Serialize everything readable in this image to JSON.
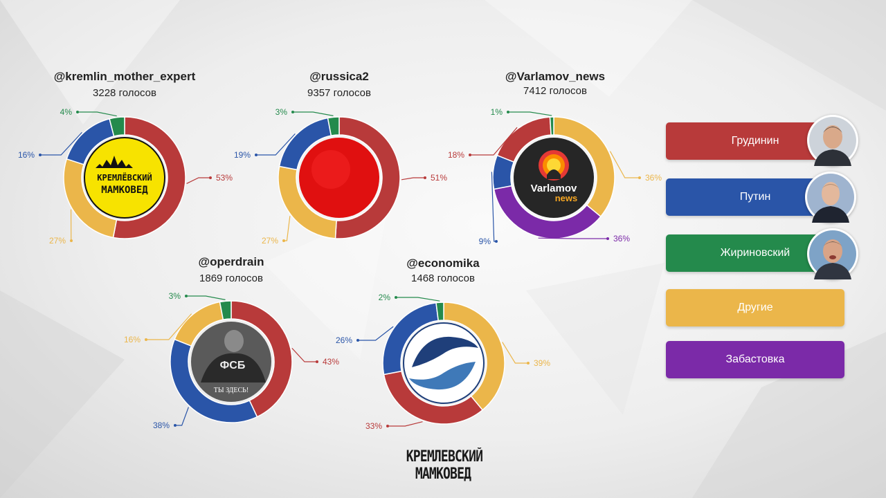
{
  "colors": {
    "grudinin": "#b83a3a",
    "putin": "#2a55a8",
    "zhirinovsky": "#248a4c",
    "others": "#ebb64a",
    "strike": "#7b2aa8"
  },
  "legend": [
    {
      "label": "Грудинин",
      "key": "grudinin",
      "photo": "grudinin-photo"
    },
    {
      "label": "Путин",
      "key": "putin",
      "photo": "putin-photo"
    },
    {
      "label": "Жириновский",
      "key": "zhirinovsky",
      "photo": "zhirinovsky-photo"
    },
    {
      "label": "Другие",
      "key": "others"
    },
    {
      "label": "Забастовка",
      "key": "strike"
    }
  ],
  "chart_data": [
    {
      "type": "pie",
      "title": "@kremlin_mother_expert",
      "subtitle": "3228 голосов",
      "logo_text": [
        "КРЕМЛЁВСКИЙ",
        "МАМКОВЕД"
      ],
      "slices": [
        {
          "key": "grudinin",
          "value": 53,
          "label": "53%"
        },
        {
          "key": "others",
          "value": 27,
          "label": "27%"
        },
        {
          "key": "putin",
          "value": 16,
          "label": "16%"
        },
        {
          "key": "zhirinovsky",
          "value": 4,
          "label": "4%"
        }
      ]
    },
    {
      "type": "pie",
      "title": "@russica2",
      "subtitle": "9357 голосов",
      "slices": [
        {
          "key": "grudinin",
          "value": 51,
          "label": "51%"
        },
        {
          "key": "others",
          "value": 27,
          "label": "27%"
        },
        {
          "key": "putin",
          "value": 19,
          "label": "19%"
        },
        {
          "key": "zhirinovsky",
          "value": 3,
          "label": "3%"
        }
      ]
    },
    {
      "type": "pie",
      "title": "@Varlamov_news",
      "subtitle": "7412 голосов",
      "logo_text": [
        "Varlamov",
        "news"
      ],
      "slices": [
        {
          "key": "others",
          "value": 36,
          "label": "36%"
        },
        {
          "key": "strike",
          "value": 36,
          "label": "36%"
        },
        {
          "key": "putin",
          "value": 9,
          "label": "9%"
        },
        {
          "key": "grudinin",
          "value": 18,
          "label": "18%"
        },
        {
          "key": "zhirinovsky",
          "value": 1,
          "label": "1%"
        }
      ]
    },
    {
      "type": "pie",
      "title": "@operdrain",
      "subtitle": "1869 голосов",
      "logo_text": [
        "ФСБ",
        "ТЫ ЗДЕСЬ!"
      ],
      "slices": [
        {
          "key": "grudinin",
          "value": 43,
          "label": "43%"
        },
        {
          "key": "putin",
          "value": 38,
          "label": "38%"
        },
        {
          "key": "others",
          "value": 16,
          "label": "16%"
        },
        {
          "key": "zhirinovsky",
          "value": 3,
          "label": "3%"
        }
      ]
    },
    {
      "type": "pie",
      "title": "@economika",
      "subtitle": "1468 голосов",
      "slices": [
        {
          "key": "others",
          "value": 39,
          "label": "39%"
        },
        {
          "key": "grudinin",
          "value": 33,
          "label": "33%"
        },
        {
          "key": "putin",
          "value": 26,
          "label": "26%"
        },
        {
          "key": "zhirinovsky",
          "value": 2,
          "label": "2%"
        }
      ]
    }
  ],
  "brand": {
    "line1": "КРЕМЛЕВСКИЙ",
    "line2": "МАМКОВЕД"
  }
}
